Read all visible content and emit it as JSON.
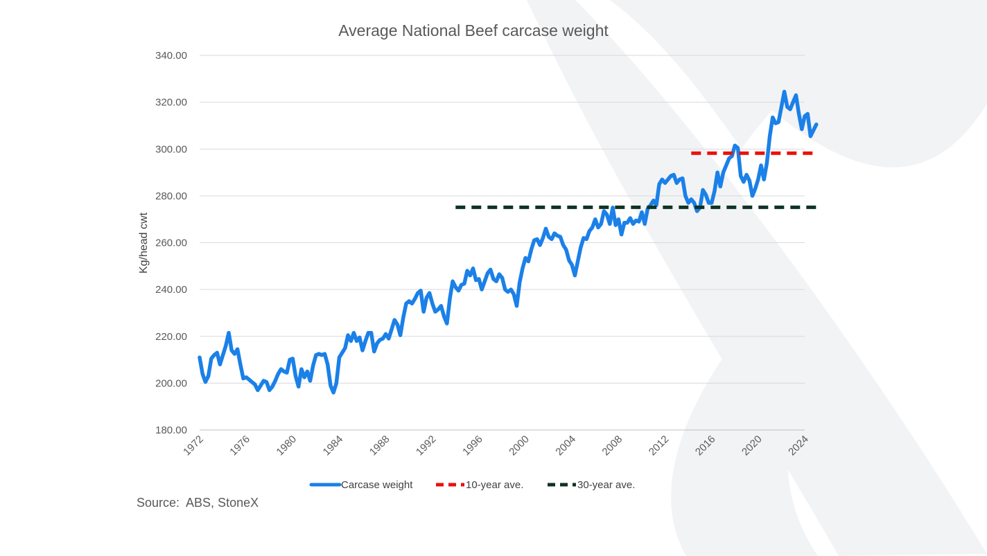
{
  "chart_data": {
    "type": "line",
    "title": "Average National Beef carcase weight",
    "xlabel": "",
    "ylabel": "Kg/head cwt",
    "xlim": [
      1972,
      2024
    ],
    "ylim": [
      180,
      340
    ],
    "y_ticks": [
      "180.00",
      "200.00",
      "220.00",
      "240.00",
      "260.00",
      "280.00",
      "300.00",
      "320.00",
      "340.00"
    ],
    "x_ticks": [
      "1972",
      "1976",
      "1980",
      "1984",
      "1988",
      "1992",
      "1996",
      "2000",
      "2004",
      "2008",
      "2012",
      "2016",
      "2020",
      "2024"
    ],
    "grid": "horizontal",
    "legend_position": "bottom",
    "series": [
      {
        "name": "Carcase weight",
        "color": "#1B80E8",
        "style": "solid",
        "points": [
          [
            1972.0,
            211
          ],
          [
            1972.25,
            204
          ],
          [
            1972.5,
            200.5
          ],
          [
            1972.75,
            203
          ],
          [
            1973.0,
            210.5
          ],
          [
            1973.25,
            212
          ],
          [
            1973.5,
            213
          ],
          [
            1973.75,
            208
          ],
          [
            1974.0,
            212
          ],
          [
            1974.25,
            216
          ],
          [
            1974.5,
            221.5
          ],
          [
            1974.75,
            214
          ],
          [
            1975.0,
            212.5
          ],
          [
            1975.25,
            214.5
          ],
          [
            1975.5,
            208
          ],
          [
            1975.75,
            202
          ],
          [
            1976.0,
            202.5
          ],
          [
            1976.25,
            201.5
          ],
          [
            1976.5,
            200.5
          ],
          [
            1976.75,
            199.5
          ],
          [
            1977.0,
            197
          ],
          [
            1977.25,
            199
          ],
          [
            1977.5,
            201
          ],
          [
            1977.75,
            200.5
          ],
          [
            1978.0,
            197
          ],
          [
            1978.25,
            198.5
          ],
          [
            1978.5,
            201
          ],
          [
            1978.75,
            204
          ],
          [
            1979.0,
            206
          ],
          [
            1979.25,
            205
          ],
          [
            1979.5,
            204.5
          ],
          [
            1979.75,
            210
          ],
          [
            1980.0,
            210.5
          ],
          [
            1980.25,
            203
          ],
          [
            1980.5,
            198.5
          ],
          [
            1980.75,
            206
          ],
          [
            1981.0,
            202.5
          ],
          [
            1981.25,
            205
          ],
          [
            1981.5,
            201
          ],
          [
            1981.75,
            207.5
          ],
          [
            1982.0,
            212
          ],
          [
            1982.25,
            212.5
          ],
          [
            1982.5,
            212
          ],
          [
            1982.75,
            212.5
          ],
          [
            1983.0,
            208
          ],
          [
            1983.25,
            199
          ],
          [
            1983.5,
            196
          ],
          [
            1983.75,
            200
          ],
          [
            1984.0,
            211
          ],
          [
            1984.25,
            213
          ],
          [
            1984.5,
            215
          ],
          [
            1984.75,
            220.5
          ],
          [
            1985.0,
            218
          ],
          [
            1985.25,
            221.5
          ],
          [
            1985.5,
            218
          ],
          [
            1985.75,
            219.5
          ],
          [
            1986.0,
            214
          ],
          [
            1986.25,
            218
          ],
          [
            1986.5,
            221.5
          ],
          [
            1986.75,
            221.5
          ],
          [
            1987.0,
            213.5
          ],
          [
            1987.25,
            217
          ],
          [
            1987.5,
            218.5
          ],
          [
            1987.75,
            219
          ],
          [
            1988.0,
            221
          ],
          [
            1988.25,
            219
          ],
          [
            1988.5,
            223
          ],
          [
            1988.75,
            227
          ],
          [
            1989.0,
            225
          ],
          [
            1989.25,
            220.5
          ],
          [
            1989.5,
            228
          ],
          [
            1989.75,
            234
          ],
          [
            1990.0,
            235
          ],
          [
            1990.25,
            234
          ],
          [
            1990.5,
            236
          ],
          [
            1990.75,
            238.5
          ],
          [
            1991.0,
            239.5
          ],
          [
            1991.25,
            230.5
          ],
          [
            1991.5,
            236.5
          ],
          [
            1991.75,
            238.5
          ],
          [
            1992.0,
            234
          ],
          [
            1992.25,
            230.5
          ],
          [
            1992.5,
            231.5
          ],
          [
            1992.75,
            233
          ],
          [
            1993.0,
            228.5
          ],
          [
            1993.25,
            225.5
          ],
          [
            1993.5,
            236
          ],
          [
            1993.75,
            243.5
          ],
          [
            1994.0,
            241
          ],
          [
            1994.25,
            239.5
          ],
          [
            1994.5,
            242
          ],
          [
            1994.75,
            242.5
          ],
          [
            1995.0,
            248
          ],
          [
            1995.25,
            246
          ],
          [
            1995.5,
            249
          ],
          [
            1995.75,
            244
          ],
          [
            1996.0,
            244.5
          ],
          [
            1996.25,
            240
          ],
          [
            1996.5,
            243.5
          ],
          [
            1996.75,
            247
          ],
          [
            1997.0,
            248.5
          ],
          [
            1997.25,
            244.5
          ],
          [
            1997.5,
            243.5
          ],
          [
            1997.75,
            246.5
          ],
          [
            1998.0,
            245
          ],
          [
            1998.25,
            240
          ],
          [
            1998.5,
            239
          ],
          [
            1998.75,
            240
          ],
          [
            1999.0,
            238
          ],
          [
            1999.25,
            233
          ],
          [
            1999.5,
            243
          ],
          [
            1999.75,
            249
          ],
          [
            2000.0,
            253.5
          ],
          [
            2000.25,
            252
          ],
          [
            2000.5,
            257
          ],
          [
            2000.75,
            261
          ],
          [
            2001.0,
            261.5
          ],
          [
            2001.25,
            259
          ],
          [
            2001.5,
            262
          ],
          [
            2001.75,
            266
          ],
          [
            2002.0,
            262.5
          ],
          [
            2002.25,
            261.5
          ],
          [
            2002.5,
            264
          ],
          [
            2002.75,
            263
          ],
          [
            2003.0,
            262.5
          ],
          [
            2003.25,
            259
          ],
          [
            2003.5,
            257
          ],
          [
            2003.75,
            252.5
          ],
          [
            2004.0,
            250.5
          ],
          [
            2004.25,
            246
          ],
          [
            2004.5,
            252
          ],
          [
            2004.75,
            258
          ],
          [
            2005.0,
            262
          ],
          [
            2005.25,
            261.5
          ],
          [
            2005.5,
            265
          ],
          [
            2005.75,
            266.5
          ],
          [
            2006.0,
            270
          ],
          [
            2006.25,
            266.5
          ],
          [
            2006.5,
            268
          ],
          [
            2006.75,
            273.5
          ],
          [
            2007.0,
            272
          ],
          [
            2007.25,
            268
          ],
          [
            2007.5,
            275
          ],
          [
            2007.75,
            267.5
          ],
          [
            2008.0,
            270
          ],
          [
            2008.25,
            263.5
          ],
          [
            2008.5,
            268.5
          ],
          [
            2008.75,
            268.5
          ],
          [
            2009.0,
            270.5
          ],
          [
            2009.25,
            268
          ],
          [
            2009.5,
            269.5
          ],
          [
            2009.75,
            269
          ],
          [
            2010.0,
            273
          ],
          [
            2010.25,
            268
          ],
          [
            2010.5,
            274.5
          ],
          [
            2010.75,
            276
          ],
          [
            2011.0,
            278
          ],
          [
            2011.25,
            276
          ],
          [
            2011.5,
            285
          ],
          [
            2011.75,
            287
          ],
          [
            2012.0,
            285.5
          ],
          [
            2012.25,
            287
          ],
          [
            2012.5,
            288.5
          ],
          [
            2012.75,
            289
          ],
          [
            2013.0,
            285.5
          ],
          [
            2013.25,
            287
          ],
          [
            2013.5,
            287.5
          ],
          [
            2013.75,
            280
          ],
          [
            2014.0,
            277
          ],
          [
            2014.25,
            278.5
          ],
          [
            2014.5,
            277
          ],
          [
            2014.75,
            273.5
          ],
          [
            2015.0,
            275
          ],
          [
            2015.25,
            282.5
          ],
          [
            2015.5,
            280.5
          ],
          [
            2015.75,
            277
          ],
          [
            2016.0,
            277
          ],
          [
            2016.25,
            282
          ],
          [
            2016.5,
            290
          ],
          [
            2016.75,
            284
          ],
          [
            2017.0,
            290
          ],
          [
            2017.25,
            293
          ],
          [
            2017.5,
            296
          ],
          [
            2017.75,
            297
          ],
          [
            2018.0,
            301.5
          ],
          [
            2018.25,
            300.5
          ],
          [
            2018.5,
            288.5
          ],
          [
            2018.75,
            286
          ],
          [
            2019.0,
            289
          ],
          [
            2019.25,
            286.5
          ],
          [
            2019.5,
            280
          ],
          [
            2019.75,
            283
          ],
          [
            2020.0,
            287
          ],
          [
            2020.25,
            293
          ],
          [
            2020.5,
            287
          ],
          [
            2020.75,
            294
          ],
          [
            2021.0,
            305.5
          ],
          [
            2021.25,
            313.5
          ],
          [
            2021.5,
            311
          ],
          [
            2021.75,
            311.5
          ],
          [
            2022.0,
            318
          ],
          [
            2022.25,
            324.5
          ],
          [
            2022.5,
            318
          ],
          [
            2022.75,
            317
          ],
          [
            2023.0,
            320
          ],
          [
            2023.25,
            323
          ],
          [
            2023.5,
            315
          ],
          [
            2023.75,
            308.5
          ],
          [
            2024.0,
            314
          ],
          [
            2024.25,
            315
          ],
          [
            2024.5,
            305.5
          ],
          [
            2024.75,
            308
          ],
          [
            2025.0,
            310.5
          ]
        ]
      },
      {
        "name": "10-year ave.",
        "color": "#E8110F",
        "style": "dashed",
        "points": [
          [
            2014.25,
            298.2
          ],
          [
            2025.0,
            298.2
          ]
        ]
      },
      {
        "name": "30-year ave.",
        "color": "#0F3322",
        "style": "dashed",
        "points": [
          [
            1994.0,
            275.1
          ],
          [
            2025.0,
            275.1
          ]
        ]
      }
    ]
  },
  "source_text": "Source:  ABS, StoneX",
  "watermark": "x-logo"
}
